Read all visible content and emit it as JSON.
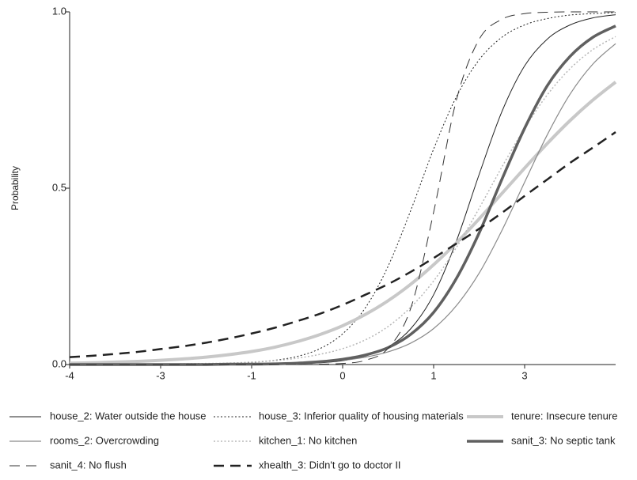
{
  "chart_data": {
    "type": "line",
    "ylabel": "Probability",
    "categories": [
      "-4",
      null,
      null,
      null,
      "-3",
      null,
      null,
      null,
      "-1",
      null,
      null,
      null,
      "0",
      null,
      null,
      null,
      "1",
      null,
      null,
      null,
      "3",
      null,
      null,
      null,
      null
    ],
    "ylim": [
      0,
      1
    ],
    "yticks": [
      {
        "value": 0,
        "label": "0.0"
      },
      {
        "value": 0.5,
        "label": "0.5"
      },
      {
        "value": 1,
        "label": "1.0"
      }
    ],
    "series": [
      {
        "name": "house_2: Water outside the house",
        "color": "#222222",
        "linewidth": 1,
        "linestyle": "solid",
        "values": [
          0,
          0,
          0,
          0,
          0,
          0,
          0,
          0,
          0.001,
          0.001,
          0.002,
          0.005,
          0.011,
          0.024,
          0.05,
          0.102,
          0.198,
          0.35,
          0.539,
          0.717,
          0.847,
          0.923,
          0.963,
          0.983,
          0.992
        ]
      },
      {
        "name": "house_3: Inferior quality of housing materials",
        "color": "#222222",
        "linewidth": 1,
        "linestyle": "dotted",
        "values": [
          0,
          0,
          0,
          0,
          0,
          0.001,
          0.001,
          0.003,
          0.006,
          0.012,
          0.023,
          0.045,
          0.087,
          0.161,
          0.279,
          0.438,
          0.611,
          0.759,
          0.864,
          0.928,
          0.963,
          0.981,
          0.991,
          0.995,
          0.998
        ]
      },
      {
        "name": "tenure: Insecure tenure",
        "color": "#c8c8c8",
        "linewidth": 4,
        "linestyle": "solid",
        "values": [
          0.004,
          0.005,
          0.007,
          0.009,
          0.012,
          0.016,
          0.021,
          0.028,
          0.037,
          0.049,
          0.065,
          0.085,
          0.11,
          0.142,
          0.181,
          0.228,
          0.283,
          0.345,
          0.413,
          0.485,
          0.557,
          0.627,
          0.692,
          0.75,
          0.801
        ]
      },
      {
        "name": "rooms_2: Overcrowding",
        "color": "#8a8a8a",
        "linewidth": 1.2,
        "linestyle": "solid",
        "values": [
          0,
          0,
          0,
          0,
          0,
          0,
          0,
          0.001,
          0.001,
          0.002,
          0.004,
          0.007,
          0.012,
          0.021,
          0.036,
          0.061,
          0.102,
          0.167,
          0.259,
          0.38,
          0.517,
          0.652,
          0.767,
          0.852,
          0.91
        ]
      },
      {
        "name": "kitchen_1: No kitchen",
        "color": "#b8b8b8",
        "linewidth": 1.5,
        "linestyle": "dotted",
        "values": [
          0,
          0,
          0,
          0.001,
          0.001,
          0.002,
          0.003,
          0.004,
          0.007,
          0.011,
          0.018,
          0.029,
          0.045,
          0.07,
          0.108,
          0.163,
          0.237,
          0.332,
          0.443,
          0.56,
          0.67,
          0.765,
          0.839,
          0.893,
          0.93
        ]
      },
      {
        "name": "sanit_3: No septic tank",
        "color": "#606060",
        "linewidth": 3.5,
        "linestyle": "solid",
        "values": [
          0,
          0,
          0,
          0,
          0,
          0,
          0,
          0.001,
          0.001,
          0.002,
          0.004,
          0.008,
          0.015,
          0.027,
          0.048,
          0.086,
          0.148,
          0.244,
          0.373,
          0.525,
          0.67,
          0.791,
          0.874,
          0.928,
          0.96
        ]
      },
      {
        "name": "sanit_4: No flush",
        "color": "#333333",
        "linewidth": 1,
        "linestyle": "dashed",
        "values": [
          0,
          0,
          0,
          0,
          0,
          0,
          0,
          0,
          0,
          0,
          0,
          0.001,
          0.003,
          0.012,
          0.046,
          0.161,
          0.432,
          0.75,
          0.922,
          0.979,
          0.995,
          0.999,
          1,
          1,
          1
        ]
      },
      {
        "name": "xhealth_3: Didn't go to doctor II",
        "color": "#222222",
        "linewidth": 2.5,
        "linestyle": "dashed",
        "values": [
          0.021,
          0.025,
          0.03,
          0.036,
          0.044,
          0.052,
          0.062,
          0.074,
          0.088,
          0.104,
          0.123,
          0.144,
          0.169,
          0.198,
          0.228,
          0.263,
          0.302,
          0.343,
          0.385,
          0.43,
          0.478,
          0.525,
          0.572,
          0.615,
          0.659
        ]
      }
    ]
  }
}
